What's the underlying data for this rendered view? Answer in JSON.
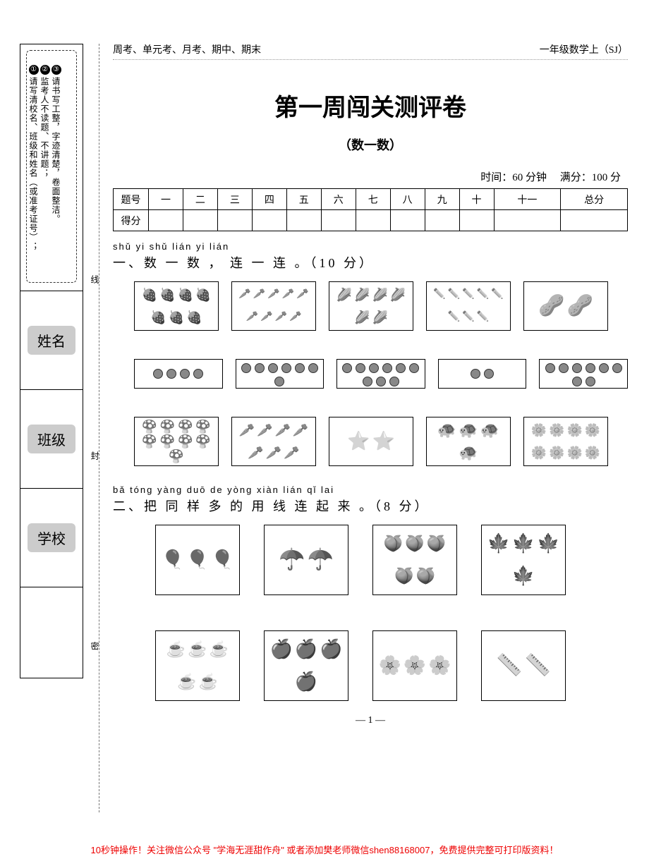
{
  "sidebar": {
    "rules": {
      "r1_num": "①",
      "r1": "请写清校名、班级和姓名（或准考证号）；",
      "r2_num": "②",
      "r2": "监考人不读题、不讲题；",
      "r3_num": "③",
      "r3": "请书写工整，字迹清楚，卷面整洁。"
    },
    "labels": {
      "name": "姓名",
      "class": "班级",
      "school": "学校"
    },
    "binding": {
      "xian": "线",
      "feng": "封",
      "mi": "密"
    }
  },
  "header": {
    "left": "周考、单元考、月考、期中、期末",
    "right": "一年级数学上（SJ）"
  },
  "title": "第一周闯关测评卷",
  "subtitle": "（数一数）",
  "meta": {
    "time": "时间：60 分钟",
    "full": "满分：100 分"
  },
  "score_table": {
    "row1_head": "题号",
    "cols": [
      "一",
      "二",
      "三",
      "四",
      "五",
      "六",
      "七",
      "八",
      "九",
      "十",
      "十一",
      "总分"
    ],
    "row2_head": "得分"
  },
  "q1": {
    "pinyin": "shǔ  yi  shǔ     lián  yi  lián",
    "title": "一、数 一 数 ， 连 一 连 。（10 分）",
    "top_items": [
      {
        "glyph": "🍓",
        "count": 7,
        "size": "s18"
      },
      {
        "glyph": "🥕",
        "count": 9,
        "size": "s14"
      },
      {
        "glyph": "🌽",
        "count": 6,
        "size": "s18"
      },
      {
        "glyph": "✏️",
        "count": 8,
        "size": "s14"
      },
      {
        "glyph": "🥜",
        "count": 2,
        "size": "s30"
      }
    ],
    "dot_counts": [
      4,
      7,
      9,
      2,
      8
    ],
    "bot_items": [
      {
        "glyph": "🍄",
        "count": 9,
        "size": "s18"
      },
      {
        "glyph": "🥕",
        "count": 7,
        "size": "s18"
      },
      {
        "glyph": "⭐",
        "count": 2,
        "size": "s26"
      },
      {
        "glyph": "🐢",
        "count": 4,
        "size": "s22"
      },
      {
        "glyph": "🌼",
        "count": 8,
        "size": "s18"
      }
    ]
  },
  "q2": {
    "pinyin": "bǎ  tóng  yàng  duō  de  yòng  xiàn  lián  qǐ  lai",
    "title": "二、把 同 样 多 的 用 线 连 起 来 。（8 分）",
    "top_items": [
      {
        "glyph": "🎈",
        "count": 3,
        "size": "s26"
      },
      {
        "glyph": "☂️",
        "count": 2,
        "size": "s30"
      },
      {
        "glyph": "🍑",
        "count": 5,
        "size": "s22"
      },
      {
        "glyph": "🍁",
        "count": 4,
        "size": "s26"
      }
    ],
    "bot_items": [
      {
        "glyph": "☕",
        "count": 5,
        "size": "s22"
      },
      {
        "glyph": "🍎",
        "count": 4,
        "size": "s26"
      },
      {
        "glyph": "🌸",
        "count": 3,
        "size": "s26"
      },
      {
        "glyph": "📏",
        "count": 2,
        "size": "s30"
      }
    ]
  },
  "pagenum": "— 1 —",
  "footer": "10秒钟操作！关注微信公众号 \"学海无涯甜作舟\" 或者添加樊老师微信shen88168007，免费提供完整可打印版资料！"
}
